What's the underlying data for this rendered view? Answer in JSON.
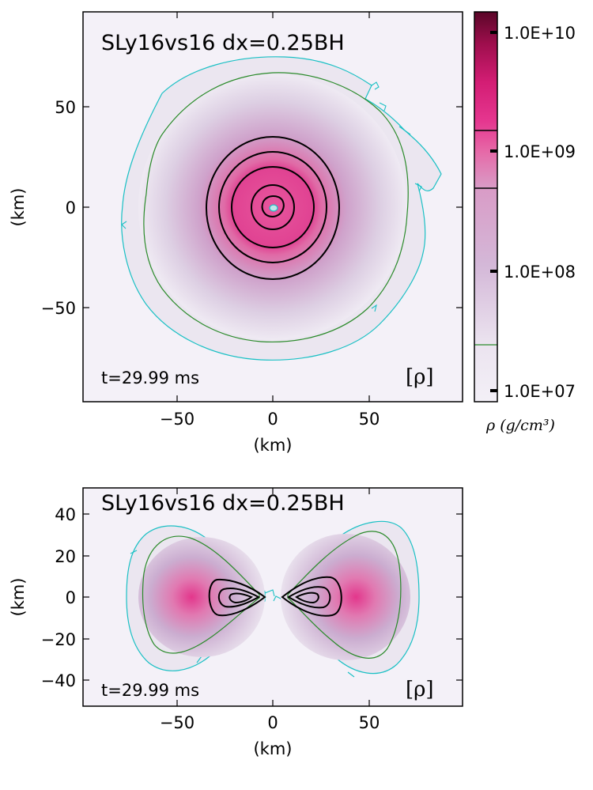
{
  "chart_data": [
    {
      "type": "heatmap",
      "view": "equatorial (x-y plane)",
      "title": "SLy16vs16 dx=0.25BH",
      "time_label": "t=29.99 ms",
      "variable_label": "[ρ]",
      "xlabel": "(km)",
      "ylabel": "(km)",
      "xlim": [
        -95,
        95
      ],
      "ylim": [
        -97,
        97
      ],
      "xticks": [
        -50,
        0,
        50
      ],
      "xtick_labels": [
        "−50",
        "0",
        "50"
      ],
      "yticks": [
        50,
        0,
        -50
      ],
      "ytick_labels": [
        "50",
        "0",
        "−50"
      ],
      "density_contours_km": {
        "outer_cyan_radius": 78,
        "green_radius": 68,
        "black_radii": [
          36,
          27,
          20,
          10,
          6
        ]
      }
    },
    {
      "type": "heatmap",
      "view": "meridional (x-z plane)",
      "title": "SLy16vs16 dx=0.25BH",
      "time_label": "t=29.99 ms",
      "variable_label": "[ρ]",
      "xlabel": "(km)",
      "ylabel": "(km)",
      "xlim": [
        -95,
        95
      ],
      "ylim": [
        -52,
        52
      ],
      "xticks": [
        -50,
        0,
        50
      ],
      "xtick_labels": [
        "−50",
        "0",
        "50"
      ],
      "yticks": [
        40,
        20,
        0,
        -20,
        -40
      ],
      "ytick_labels": [
        "40",
        "20",
        "0",
        "−20",
        "−40"
      ]
    }
  ],
  "colorbar": {
    "title": "ρ (g/cm³)",
    "scale": "log",
    "range": [
      10000000.0,
      14000000000.0
    ],
    "ticks": [
      {
        "value": 10000000000.0,
        "label": "1.0E+10"
      },
      {
        "value": 1000000000.0,
        "label": "1.0E+09"
      },
      {
        "value": 100000000.0,
        "label": "1.0E+08"
      },
      {
        "value": 10000000.0,
        "label": "1.0E+07"
      }
    ],
    "contour_lines": [
      {
        "value": 27000000.0,
        "color": "#2a8a2a"
      },
      {
        "value": 500000000.0,
        "color": "#000000"
      },
      {
        "value": 1300000000.0,
        "color": "#000000"
      }
    ]
  },
  "colors": {
    "low_density": "#f4f1f8",
    "mid_density": "#c9aed4",
    "high_density": "#e6338a",
    "peak_density": "#6a0a30",
    "outer_contour": "#19c0c4",
    "mid_contour": "#2a8a2a",
    "inner_contour": "#000000"
  }
}
